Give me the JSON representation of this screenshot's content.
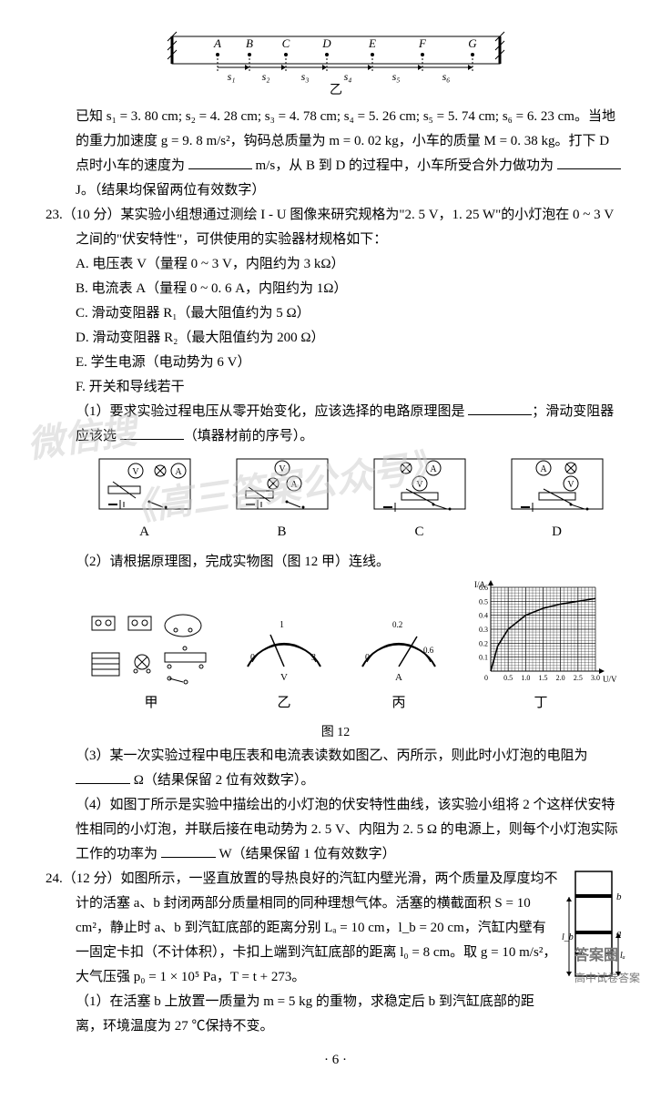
{
  "topdiag": {
    "labels": [
      "A",
      "B",
      "C",
      "D",
      "E",
      "F",
      "G"
    ],
    "segs": [
      "s₁",
      "s₂",
      "s₃",
      "s₄",
      "s₅",
      "s₆"
    ],
    "sub": "乙"
  },
  "p22cont": {
    "line1": "已知 s₁ = 3. 80 cm; s₂ = 4. 28 cm; s₃ = 4. 78 cm; s₄ = 5. 26 cm; s₅ = 5. 74 cm; s₆ = 6. 23 cm。当地的重力加速度 g = 9. 8 m/s²，钩码总质量为 m = 0. 02 kg，小车的质量 M = 0. 38 kg。打下 D 点时小车的速度为 ",
    "line1b": " m/s，从 B 到 D 的过程中，小车所受合外力做功为 ",
    "line1c": " J。（结果均保留两位有效数字）"
  },
  "q23": {
    "num": "23.",
    "stem1": "（10 分）某实验小组想通过测绘 I - U 图像来研究规格为\"2. 5 V，1. 25 W\"的小灯泡在 0 ~ 3 V 之间的\"伏安特性\"，可供使用的实验器材规格如下：",
    "optA": "A. 电压表 V（量程 0 ~ 3 V，内阻约为 3 kΩ）",
    "optB": "B. 电流表 A（量程 0 ~ 0. 6 A，内阻约为 1Ω）",
    "optC": "C. 滑动变阻器 R₁（最大阻值约为 5 Ω）",
    "optD": "D. 滑动变阻器 R₂（最大阻值约为 200 Ω）",
    "optE": "E. 学生电源（电动势为 6 V）",
    "optF": "F. 开关和导线若干",
    "sub1a": "（1）要求实验过程电压从零开始变化，应该选择的电路原理图是 ",
    "sub1b": "；滑动变阻器应该选 ",
    "sub1c": "（填器材前的序号）。",
    "circuits": {
      "A": "A",
      "B": "B",
      "C": "C",
      "D": "D"
    },
    "sub2": "（2）请根据原理图，完成实物图（图 12 甲）连线。",
    "fig12": {
      "labels": [
        "甲",
        "乙",
        "丙",
        "丁"
      ],
      "title": "图 12"
    },
    "chart": {
      "xlabel": "U/V",
      "ylabel": "I/A",
      "xlim": [
        0,
        3.0
      ],
      "ylim": [
        0,
        0.6
      ],
      "xticks": [
        0.5,
        1.0,
        1.5,
        2.0,
        2.5,
        3.0
      ],
      "yticks": [
        0.1,
        0.2,
        0.3,
        0.4,
        0.5,
        0.6
      ],
      "points": [
        [
          0,
          0
        ],
        [
          0.2,
          0.18
        ],
        [
          0.5,
          0.3
        ],
        [
          1.0,
          0.4
        ],
        [
          1.5,
          0.45
        ],
        [
          2.0,
          0.48
        ],
        [
          2.5,
          0.5
        ],
        [
          3.0,
          0.52
        ]
      ],
      "line_color": "#000000",
      "grid_color": "#000000",
      "bg": "#ffffff"
    },
    "sub3a": "（3）某一次实验过程中电压表和电流表读数如图乙、丙所示，则此时小灯泡的电阻为 ",
    "sub3b": " Ω（结果保留 2 位有效数字）。",
    "sub4a": "（4）如图丁所示是实验中描绘出的小灯泡的伏安特性曲线，该实验小组将 2 个这样伏安特性相同的小灯泡，并联后接在电动势为 2. 5 V、内阻为 2. 5 Ω 的电源上，则每个小灯泡实际工作的功率为 ",
    "sub4b": " W（结果保留 1 位有效数字）"
  },
  "q24": {
    "num": "24.",
    "stem": "（12 分）如图所示，一竖直放置的导热良好的汽缸内壁光滑，两个质量及厚度均不计的活塞 a、b 封闭两部分质量相同的同种理想气体。活塞的横截面积 S = 10 cm²，静止时 a、b 到汽缸底部的距离分别 Lₐ = 10 cm，l_b = 20 cm，汽缸内壁有一固定卡扣（不计体积），卡扣上端到汽缸底部的距离 l₀ = 8 cm。取 g = 10 m/s²，大气压强 p₀ = 1 × 10⁵ Pa，T = t + 273。",
    "sub1": "（1）在活塞 b 上放置一质量为 m = 5 kg 的重物，求稳定后 b 到汽缸底部的距离，环境温度为 27 ℃保持不变。"
  },
  "watermarks": {
    "w1": "微信搜",
    "w2": "《高三答案公众号》"
  },
  "footer": {
    "page": "· 6 ·",
    "mark1": "答案圈",
    "mark2": "高中试卷答案"
  }
}
